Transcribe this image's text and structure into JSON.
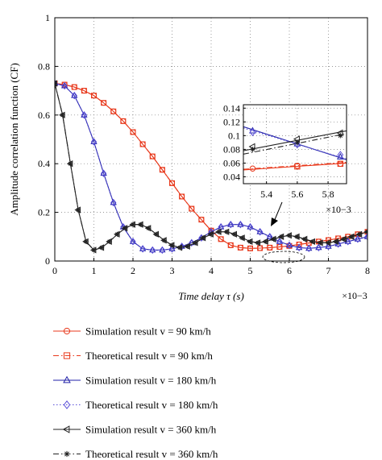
{
  "chart_data": [
    {
      "type": "line",
      "title": "",
      "xlabel": "Time delay τ (s)",
      "x_multiplier": "×10−3",
      "ylabel": "Amplitude correlation function (CF)",
      "xlim": [
        0,
        8
      ],
      "ylim": [
        0,
        1
      ],
      "x_ticks": [
        "0",
        "1",
        "2",
        "3",
        "4",
        "5",
        "6",
        "7",
        "8"
      ],
      "y_ticks": [
        "0",
        "0.2",
        "0.4",
        "0.6",
        "0.8",
        "1"
      ],
      "grid": true,
      "legend_position": "below plot",
      "series": [
        {
          "name": "Simulation result v = 90 km/h",
          "color": "#e8391c",
          "marker": "circle",
          "dash": "solid",
          "x": [
            0,
            0.25,
            0.5,
            0.75,
            1,
            1.25,
            1.5,
            1.75,
            2,
            2.25,
            2.5,
            2.75,
            3,
            3.25,
            3.5,
            3.75,
            4,
            4.25,
            4.5,
            4.75,
            5,
            5.25,
            5.5,
            5.75,
            6,
            6.25,
            6.5,
            6.75,
            7,
            7.25,
            7.5,
            7.75,
            8
          ],
          "y": [
            0.73,
            0.725,
            0.715,
            0.7,
            0.68,
            0.65,
            0.615,
            0.575,
            0.53,
            0.48,
            0.43,
            0.375,
            0.32,
            0.265,
            0.215,
            0.17,
            0.125,
            0.09,
            0.065,
            0.055,
            0.052,
            0.053,
            0.055,
            0.058,
            0.062,
            0.068,
            0.074,
            0.08,
            0.086,
            0.093,
            0.1,
            0.11,
            0.12
          ]
        },
        {
          "name": "Theoretical result v = 90 km/h",
          "color": "#e8391c",
          "marker": "square",
          "dash": "dashdot",
          "x": [
            0,
            0.25,
            0.5,
            0.75,
            1,
            1.25,
            1.5,
            1.75,
            2,
            2.25,
            2.5,
            2.75,
            3,
            3.25,
            3.5,
            3.75,
            4,
            4.25,
            4.5,
            4.75,
            5,
            5.25,
            5.5,
            5.75,
            6,
            6.25,
            6.5,
            6.75,
            7,
            7.25,
            7.5,
            7.75,
            8
          ],
          "y": [
            0.73,
            0.725,
            0.715,
            0.7,
            0.68,
            0.65,
            0.615,
            0.575,
            0.53,
            0.48,
            0.43,
            0.375,
            0.32,
            0.265,
            0.215,
            0.17,
            0.125,
            0.09,
            0.065,
            0.055,
            0.052,
            0.053,
            0.055,
            0.058,
            0.062,
            0.068,
            0.074,
            0.08,
            0.086,
            0.093,
            0.1,
            0.11,
            0.12
          ]
        },
        {
          "name": "Simulation result v = 180 km/h",
          "color": "#2222a8",
          "marker": "triangle",
          "dash": "solid",
          "x": [
            0,
            0.25,
            0.5,
            0.75,
            1,
            1.25,
            1.5,
            1.75,
            2,
            2.25,
            2.5,
            2.75,
            3,
            3.25,
            3.5,
            3.75,
            4,
            4.25,
            4.5,
            4.75,
            5,
            5.25,
            5.5,
            5.75,
            6,
            6.25,
            6.5,
            6.75,
            7,
            7.25,
            7.5,
            7.75,
            8
          ],
          "y": [
            0.73,
            0.72,
            0.68,
            0.6,
            0.49,
            0.36,
            0.24,
            0.14,
            0.08,
            0.05,
            0.045,
            0.045,
            0.05,
            0.06,
            0.075,
            0.095,
            0.12,
            0.14,
            0.15,
            0.15,
            0.14,
            0.12,
            0.1,
            0.08,
            0.065,
            0.055,
            0.052,
            0.055,
            0.06,
            0.07,
            0.08,
            0.09,
            0.1
          ]
        },
        {
          "name": "Theoretical result v = 180 km/h",
          "color": "#5a4fd8",
          "marker": "diamond",
          "dash": "dotted",
          "x": [
            0,
            0.25,
            0.5,
            0.75,
            1,
            1.25,
            1.5,
            1.75,
            2,
            2.25,
            2.5,
            2.75,
            3,
            3.25,
            3.5,
            3.75,
            4,
            4.25,
            4.5,
            4.75,
            5,
            5.25,
            5.5,
            5.75,
            6,
            6.25,
            6.5,
            6.75,
            7,
            7.25,
            7.5,
            7.75,
            8
          ],
          "y": [
            0.73,
            0.72,
            0.68,
            0.6,
            0.49,
            0.36,
            0.24,
            0.14,
            0.08,
            0.05,
            0.045,
            0.045,
            0.05,
            0.06,
            0.075,
            0.095,
            0.12,
            0.14,
            0.15,
            0.15,
            0.14,
            0.12,
            0.1,
            0.08,
            0.065,
            0.055,
            0.052,
            0.055,
            0.06,
            0.07,
            0.08,
            0.09,
            0.1
          ]
        },
        {
          "name": "Simulation result v = 360 km/h",
          "color": "#222222",
          "marker": "left-triangle",
          "dash": "solid",
          "x": [
            0,
            0.2,
            0.4,
            0.6,
            0.8,
            1,
            1.2,
            1.4,
            1.6,
            1.8,
            2,
            2.2,
            2.4,
            2.6,
            2.8,
            3,
            3.2,
            3.4,
            3.6,
            3.8,
            4,
            4.2,
            4.4,
            4.6,
            4.8,
            5,
            5.2,
            5.4,
            5.6,
            5.8,
            6,
            6.2,
            6.4,
            6.6,
            6.8,
            7,
            7.2,
            7.4,
            7.6,
            7.8,
            8
          ],
          "y": [
            0.73,
            0.6,
            0.4,
            0.21,
            0.08,
            0.045,
            0.055,
            0.08,
            0.11,
            0.135,
            0.15,
            0.15,
            0.135,
            0.11,
            0.085,
            0.065,
            0.055,
            0.06,
            0.075,
            0.095,
            0.11,
            0.12,
            0.12,
            0.11,
            0.095,
            0.08,
            0.075,
            0.08,
            0.09,
            0.1,
            0.105,
            0.1,
            0.09,
            0.08,
            0.075,
            0.075,
            0.08,
            0.09,
            0.1,
            0.11,
            0.12
          ]
        },
        {
          "name": "Theoretical result v = 360 km/h",
          "color": "#222222",
          "marker": "asterisk",
          "dash": "dashdot",
          "x": [
            0,
            0.2,
            0.4,
            0.6,
            0.8,
            1,
            1.2,
            1.4,
            1.6,
            1.8,
            2,
            2.2,
            2.4,
            2.6,
            2.8,
            3,
            3.2,
            3.4,
            3.6,
            3.8,
            4,
            4.2,
            4.4,
            4.6,
            4.8,
            5,
            5.2,
            5.4,
            5.6,
            5.8,
            6,
            6.2,
            6.4,
            6.6,
            6.8,
            7,
            7.2,
            7.4,
            7.6,
            7.8,
            8
          ],
          "y": [
            0.73,
            0.6,
            0.4,
            0.21,
            0.08,
            0.045,
            0.055,
            0.08,
            0.11,
            0.135,
            0.15,
            0.15,
            0.135,
            0.11,
            0.085,
            0.065,
            0.055,
            0.06,
            0.075,
            0.095,
            0.11,
            0.12,
            0.12,
            0.11,
            0.095,
            0.08,
            0.075,
            0.08,
            0.09,
            0.1,
            0.105,
            0.1,
            0.09,
            0.08,
            0.075,
            0.075,
            0.08,
            0.09,
            0.1,
            0.11,
            0.12
          ]
        }
      ]
    },
    {
      "type": "line",
      "title": "",
      "x_multiplier": "×10−3",
      "xlim": [
        5.25,
        5.92
      ],
      "ylim": [
        0.03,
        0.145
      ],
      "x_ticks": [
        "5.4",
        "5.6",
        "5.8"
      ],
      "y_ticks": [
        "0.04",
        "0.06",
        "0.08",
        "0.1",
        "0.12",
        "0.14"
      ],
      "grid": true,
      "series": [
        {
          "ref": "Simulation result v = 90 km/h",
          "x": [
            5.25,
            5.92
          ],
          "y": [
            0.05,
            0.06
          ],
          "markers_x": [
            5.31,
            5.6,
            5.88
          ],
          "markers_y": [
            0.052,
            0.056,
            0.059
          ]
        },
        {
          "ref": "Theoretical result v = 90 km/h",
          "x": [
            5.25,
            5.92
          ],
          "y": [
            0.051,
            0.061
          ],
          "markers_x": [
            5.6,
            5.88
          ],
          "markers_y": [
            0.055,
            0.059
          ]
        },
        {
          "ref": "Simulation result v = 180 km/h",
          "x": [
            5.25,
            5.92
          ],
          "y": [
            0.113,
            0.065
          ],
          "markers_x": [
            5.31,
            5.6,
            5.88
          ],
          "markers_y": [
            0.107,
            0.088,
            0.069
          ]
        },
        {
          "ref": "Theoretical result v = 180 km/h",
          "x": [
            5.25,
            5.92
          ],
          "y": [
            0.111,
            0.066
          ],
          "markers_x": [
            5.31,
            5.6,
            5.88
          ],
          "markers_y": [
            0.105,
            0.087,
            0.072
          ]
        },
        {
          "ref": "Simulation result v = 360 km/h",
          "x": [
            5.25,
            5.92
          ],
          "y": [
            0.078,
            0.107
          ],
          "markers_x": [
            5.31,
            5.6,
            5.88
          ],
          "markers_y": [
            0.084,
            0.095,
            0.104
          ]
        },
        {
          "ref": "Theoretical result v = 360 km/h",
          "x": [
            5.25,
            5.92
          ],
          "y": [
            0.073,
            0.103
          ],
          "markers_x": [
            5.31,
            5.6,
            5.88
          ],
          "markers_y": [
            0.08,
            0.09,
            0.1
          ]
        }
      ]
    }
  ]
}
